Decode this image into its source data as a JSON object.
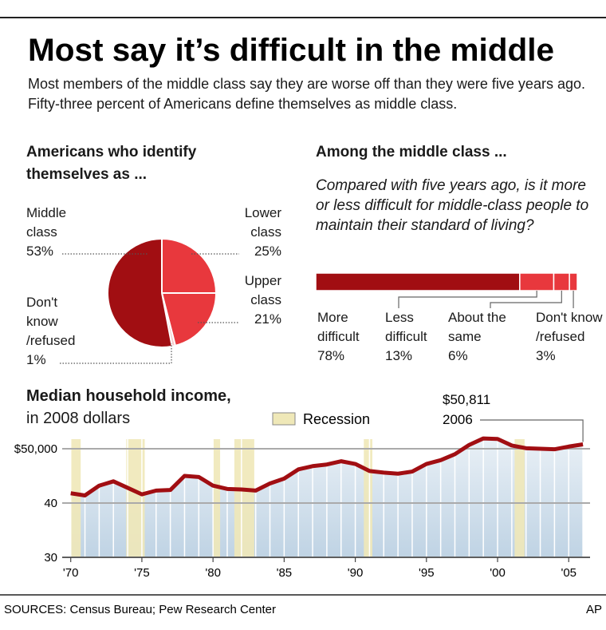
{
  "title": "Most say it’s difficult in the middle",
  "subtitle": "Most members of the middle class say they are worse off than they were five years ago. Fifty-three percent of Americans define themselves as middle class.",
  "source": "SOURCES: Census Bureau; Pew Research Center",
  "credit": "AP",
  "chart_data": [
    {
      "type": "pie",
      "title": "Americans who identify themselves as ...",
      "categories": [
        "Middle class",
        "Lower class",
        "Upper class",
        "Don't know /refused"
      ],
      "values": [
        53,
        25,
        21,
        1
      ],
      "value_labels": [
        "53%",
        "25%",
        "21%",
        "1%"
      ],
      "colors": [
        "#a10e12",
        "#e8383d",
        "#e8383d",
        "#f6c9c9"
      ]
    },
    {
      "type": "stacked_bar",
      "title": "Among the middle class ...",
      "subtitle": "Compared with five years ago, is it more or less difficult for middle-class people to maintain their standard of living?",
      "xlim": [
        0,
        100
      ],
      "series": [
        {
          "name": "More difficult",
          "color": "#a10e12",
          "values": [
            78
          ],
          "value_labels": [
            "78%"
          ]
        },
        {
          "name": "Less difficult",
          "color": "#e8383d",
          "values": [
            13
          ],
          "value_labels": [
            "13%"
          ]
        },
        {
          "name": "About the same",
          "color": "#e8383d",
          "values": [
            6
          ],
          "value_labels": [
            "6%"
          ]
        },
        {
          "name": "Don't know /refused",
          "color": "#e8383d",
          "values": [
            3
          ],
          "value_labels": [
            "3%"
          ]
        }
      ]
    },
    {
      "type": "area_line",
      "title": "Median household income,",
      "subtitle": "in 2008 dollars",
      "legend": "Recession",
      "recession_color": "#efe8b8",
      "color": "#a10e12",
      "annotation": {
        "label": "$50,811",
        "sublabel": "2006"
      },
      "x": [
        1970,
        1971,
        1972,
        1973,
        1974,
        1975,
        1976,
        1977,
        1978,
        1979,
        1980,
        1981,
        1982,
        1983,
        1984,
        1985,
        1986,
        1987,
        1988,
        1989,
        1990,
        1991,
        1992,
        1993,
        1994,
        1995,
        1996,
        1997,
        1998,
        1999,
        2000,
        2001,
        2002,
        2003,
        2004,
        2005,
        2006
      ],
      "values": [
        41.8,
        41.4,
        43.2,
        44.0,
        42.8,
        41.6,
        42.3,
        42.4,
        45.0,
        44.8,
        43.2,
        42.6,
        42.5,
        42.3,
        43.6,
        44.5,
        46.2,
        46.8,
        47.1,
        47.7,
        47.2,
        45.9,
        45.6,
        45.4,
        45.8,
        47.2,
        47.9,
        49.0,
        50.7,
        51.9,
        51.8,
        50.6,
        50.1,
        50.0,
        49.9,
        50.4,
        50.811
      ],
      "recessions": [
        [
          1970,
          1970.7
        ],
        [
          1973.9,
          1975.2
        ],
        [
          1980,
          1980.5
        ],
        [
          1981.5,
          1982.9
        ],
        [
          1990.6,
          1991.2
        ],
        [
          2001.2,
          2001.9
        ]
      ],
      "xlim": [
        1969.4,
        2006.5
      ],
      "ylim": [
        30,
        52.5
      ],
      "xticks": [
        {
          "value": 1970,
          "label": "'70"
        },
        {
          "value": 1975,
          "label": "'75"
        },
        {
          "value": 1980,
          "label": "'80"
        },
        {
          "value": 1985,
          "label": "'85"
        },
        {
          "value": 1990,
          "label": "'90"
        },
        {
          "value": 1995,
          "label": "'95"
        },
        {
          "value": 2000,
          "label": "'00"
        },
        {
          "value": 2005,
          "label": "'05"
        }
      ],
      "yticks": [
        {
          "value": 50,
          "label": "$50,000"
        },
        40,
        30
      ],
      "grid": true
    }
  ]
}
